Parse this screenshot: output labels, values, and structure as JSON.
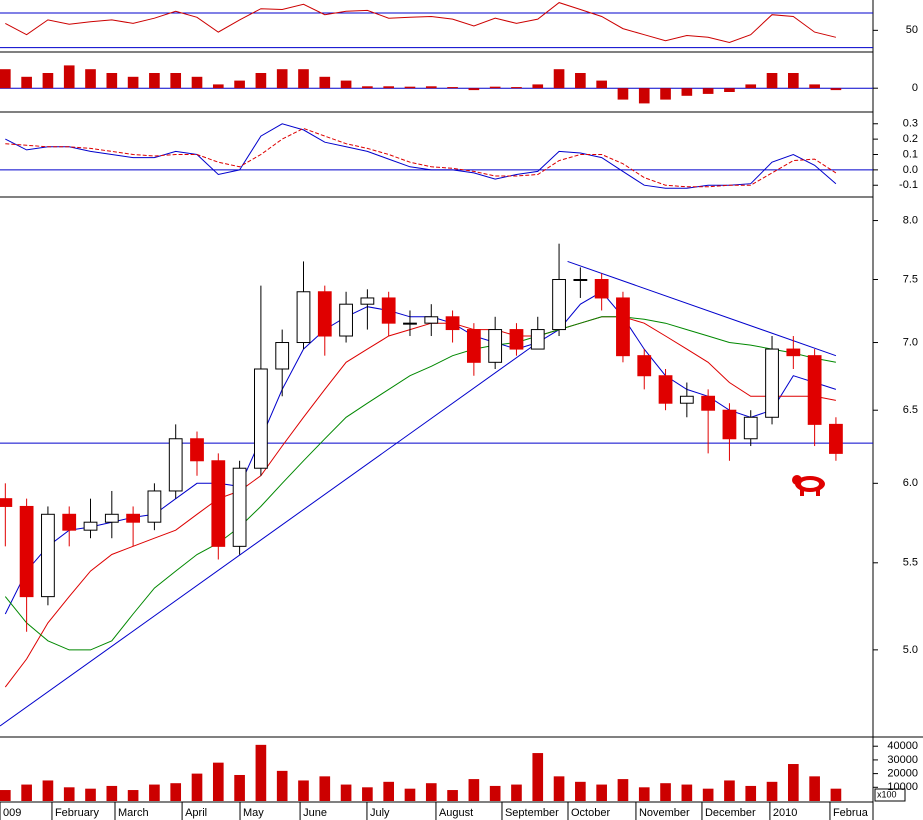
{
  "chart_data": [
    {
      "type": "candlestick",
      "log_scale": true,
      "x": [
        0,
        1,
        2,
        3,
        4,
        5,
        6,
        7,
        8,
        9,
        10,
        11,
        12,
        13,
        14,
        15,
        16,
        17,
        18,
        19,
        20,
        21,
        22,
        23,
        24,
        25,
        26,
        27,
        28,
        29,
        30,
        31,
        32,
        33,
        34,
        35,
        36,
        37,
        38,
        39
      ],
      "xlim": [
        -0.25,
        40.6
      ],
      "open": [
        5.9,
        5.85,
        5.3,
        5.8,
        5.7,
        5.75,
        5.8,
        5.75,
        5.95,
        6.3,
        6.15,
        5.6,
        6.1,
        6.8,
        7.0,
        7.4,
        7.05,
        7.3,
        7.35,
        7.15,
        7.15,
        7.2,
        7.1,
        6.85,
        7.1,
        6.95,
        7.1,
        7.5,
        7.5,
        7.35,
        6.9,
        6.75,
        6.55,
        6.6,
        6.5,
        6.3,
        6.45,
        6.95,
        6.9,
        6.4
      ],
      "high": [
        6.0,
        5.9,
        5.85,
        5.85,
        5.9,
        5.95,
        5.85,
        6.0,
        6.4,
        6.35,
        6.2,
        6.15,
        7.45,
        7.1,
        7.65,
        7.45,
        7.4,
        7.42,
        7.4,
        7.25,
        7.3,
        7.25,
        7.15,
        7.2,
        7.15,
        7.2,
        7.8,
        7.6,
        7.55,
        7.4,
        6.95,
        6.8,
        6.7,
        6.65,
        6.55,
        6.5,
        7.05,
        7.05,
        6.95,
        6.45
      ],
      "low": [
        5.6,
        5.1,
        5.25,
        5.6,
        5.65,
        5.65,
        5.6,
        5.7,
        5.9,
        6.05,
        5.52,
        5.55,
        6.05,
        6.6,
        6.95,
        6.9,
        7.0,
        7.1,
        7.05,
        7.05,
        7.05,
        7.0,
        6.75,
        6.8,
        6.9,
        6.95,
        7.05,
        7.35,
        7.25,
        6.85,
        6.65,
        6.5,
        6.45,
        6.2,
        6.15,
        6.25,
        6.4,
        6.8,
        6.25,
        6.15
      ],
      "close": [
        5.85,
        5.3,
        5.8,
        5.7,
        5.75,
        5.8,
        5.75,
        5.95,
        6.3,
        6.15,
        5.6,
        6.1,
        6.8,
        7.0,
        7.4,
        7.05,
        7.3,
        7.35,
        7.15,
        7.15,
        7.2,
        7.1,
        6.85,
        7.1,
        6.95,
        7.1,
        7.5,
        7.5,
        7.35,
        6.9,
        6.75,
        6.55,
        6.6,
        6.5,
        6.3,
        6.45,
        6.95,
        6.9,
        6.4,
        6.2
      ],
      "up_color": "#ffffff",
      "down_color": "#e00000",
      "series": [
        {
          "color": "#0000cc",
          "values": [
            5.2,
            5.45,
            5.6,
            5.7,
            5.72,
            5.75,
            5.78,
            5.8,
            5.9,
            6.0,
            6.0,
            5.98,
            6.3,
            6.65,
            6.95,
            7.1,
            7.2,
            7.28,
            7.25,
            7.2,
            7.2,
            7.15,
            7.05,
            7.0,
            6.95,
            7.0,
            7.1,
            7.3,
            7.4,
            7.2,
            6.95,
            6.75,
            6.65,
            6.6,
            6.5,
            6.45,
            6.5,
            6.75,
            6.7,
            6.65
          ]
        },
        {
          "color": "#dd0000",
          "values": [
            4.8,
            4.95,
            5.15,
            5.3,
            5.45,
            5.55,
            5.6,
            5.65,
            5.7,
            5.8,
            5.9,
            5.95,
            6.05,
            6.25,
            6.45,
            6.65,
            6.85,
            6.95,
            7.05,
            7.1,
            7.15,
            7.15,
            7.1,
            7.1,
            7.05,
            7.05,
            7.1,
            7.15,
            7.2,
            7.2,
            7.15,
            7.05,
            6.95,
            6.85,
            6.7,
            6.6,
            6.6,
            6.6,
            6.6,
            6.57
          ]
        },
        {
          "color": "#008800",
          "values": [
            5.3,
            5.15,
            5.05,
            5.0,
            5.0,
            5.05,
            5.2,
            5.35,
            5.45,
            5.55,
            5.62,
            5.72,
            5.85,
            6.0,
            6.15,
            6.3,
            6.45,
            6.55,
            6.65,
            6.75,
            6.82,
            6.9,
            6.95,
            6.98,
            7.0,
            7.05,
            7.1,
            7.15,
            7.2,
            7.2,
            7.18,
            7.15,
            7.1,
            7.05,
            7.0,
            6.98,
            6.95,
            6.92,
            6.88,
            6.85
          ]
        }
      ],
      "trendlines": [
        {
          "color": "#0000cc",
          "x": [
            -0.25,
            25
          ],
          "y": [
            4.6,
            7.0
          ]
        },
        {
          "color": "#0000cc",
          "x": [
            26.4,
            39
          ],
          "y": [
            7.65,
            6.9
          ]
        }
      ],
      "hlines": [
        {
          "color": "#0000cc",
          "y": 6.27
        }
      ],
      "ylim": [
        4.55,
        8.2
      ],
      "yticks": [
        {
          "value": 5.0,
          "label": "5.0"
        },
        5.5,
        {
          "value": 6.0,
          "label": "6.0"
        },
        6.5,
        {
          "value": 7.0,
          "label": "7.0"
        },
        7.5,
        {
          "value": 8.0,
          "label": "8.0"
        }
      ]
    },
    {
      "type": "line",
      "series": [
        {
          "color": "#cc0000",
          "values": [
            58,
            45,
            62,
            57,
            60,
            62,
            58,
            64,
            72,
            65,
            48,
            62,
            75,
            74,
            80,
            68,
            72,
            73,
            64,
            65,
            66,
            63,
            55,
            64,
            58,
            63,
            82,
            74,
            66,
            52,
            45,
            38,
            44,
            42,
            36,
            45,
            68,
            66,
            48,
            42
          ]
        }
      ],
      "levels": [
        30,
        70
      ],
      "level_color": "#0000cc",
      "ylim": [
        25,
        85
      ],
      "yticks": [
        50
      ]
    },
    {
      "type": "bar",
      "color": "#cc0000",
      "values": [
        0.05,
        0.03,
        0.04,
        0.06,
        0.05,
        0.04,
        0.03,
        0.04,
        0.04,
        0.03,
        0.01,
        0.02,
        0.04,
        0.05,
        0.05,
        0.03,
        0.02,
        0.005,
        0.005,
        0.004,
        0.005,
        0.003,
        -0.005,
        0.004,
        0.003,
        0.01,
        0.05,
        0.04,
        0.02,
        -0.03,
        -0.04,
        -0.03,
        -0.02,
        -0.015,
        -0.01,
        0.01,
        0.04,
        0.04,
        0.01,
        -0.005
      ],
      "levels": [
        0
      ],
      "level_color": "#0000cc",
      "ylim": [
        -0.06,
        0.09
      ],
      "yticks": [
        0
      ]
    },
    {
      "type": "line",
      "series": [
        {
          "color": "#0000cc",
          "values": [
            0.2,
            0.13,
            0.15,
            0.15,
            0.12,
            0.1,
            0.08,
            0.08,
            0.12,
            0.1,
            -0.03,
            0.0,
            0.22,
            0.3,
            0.26,
            0.18,
            0.15,
            0.12,
            0.07,
            0.02,
            0.0,
            0.0,
            -0.02,
            -0.06,
            -0.03,
            -0.01,
            0.12,
            0.11,
            0.08,
            -0.01,
            -0.1,
            -0.12,
            -0.12,
            -0.1,
            -0.1,
            -0.09,
            0.05,
            0.1,
            0.03,
            -0.09
          ]
        },
        {
          "color": "#dd0000",
          "dashed": true,
          "values": [
            0.17,
            0.16,
            0.15,
            0.15,
            0.14,
            0.12,
            0.1,
            0.09,
            0.1,
            0.1,
            0.05,
            0.02,
            0.1,
            0.2,
            0.27,
            0.22,
            0.17,
            0.14,
            0.1,
            0.05,
            0.02,
            0.01,
            -0.01,
            -0.04,
            -0.04,
            -0.03,
            0.06,
            0.1,
            0.1,
            0.04,
            -0.05,
            -0.1,
            -0.11,
            -0.11,
            -0.1,
            -0.1,
            -0.02,
            0.06,
            0.07,
            -0.02
          ]
        }
      ],
      "levels": [
        0
      ],
      "level_color": "#0000cc",
      "ylim": [
        -0.17,
        0.37
      ],
      "yticks": [
        0.3,
        0.2,
        0.1,
        {
          "value": 0.0,
          "label": "0.0"
        },
        -0.1
      ]
    },
    {
      "type": "bar",
      "color": "#cc0000",
      "values": [
        8000,
        12000,
        15000,
        10000,
        9000,
        11000,
        8000,
        12000,
        13000,
        20000,
        28000,
        19000,
        41000,
        22000,
        15000,
        18000,
        12000,
        10000,
        14000,
        9000,
        13000,
        8000,
        16000,
        11000,
        12000,
        35000,
        18000,
        14000,
        12000,
        16000,
        10000,
        13000,
        12000,
        9000,
        15000,
        11000,
        14000,
        27000,
        18000,
        9000
      ],
      "ylim": [
        0,
        46000
      ],
      "yticks": [
        10000,
        20000,
        30000,
        40000
      ],
      "axis_multiplier_label": "x100",
      "xticks": [
        {
          "value": -0.25,
          "label": "009"
        },
        {
          "value": 2.19,
          "label": "February"
        },
        {
          "value": 5.15,
          "label": "March"
        },
        {
          "value": 8.3,
          "label": "April"
        },
        {
          "value": 11.02,
          "label": "May"
        },
        {
          "value": 13.84,
          "label": "June"
        },
        {
          "value": 16.98,
          "label": "July"
        },
        {
          "value": 20.22,
          "label": "August"
        },
        {
          "value": 23.32,
          "label": "September"
        },
        {
          "value": 26.42,
          "label": "October"
        },
        {
          "value": 29.61,
          "label": "November"
        },
        {
          "value": 32.71,
          "label": "December"
        },
        {
          "value": 35.9,
          "label": "2010"
        },
        {
          "value": 38.72,
          "label": "Februa"
        }
      ]
    }
  ]
}
